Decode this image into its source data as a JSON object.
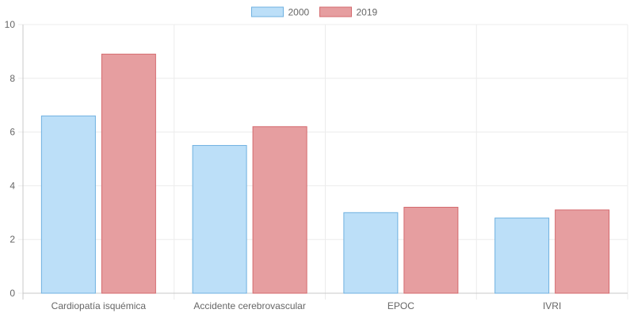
{
  "chart_data": {
    "type": "bar",
    "title": "",
    "xlabel": "",
    "ylabel": "",
    "categories": [
      "Cardiopatía isquémica",
      "Accidente cerebrovascular",
      "EPOC",
      "IVRI"
    ],
    "series": [
      {
        "name": "2000",
        "values": [
          6.6,
          5.5,
          3.0,
          2.8
        ],
        "fill": "#bcdff8",
        "stroke": "#6fb1e0"
      },
      {
        "name": "2019",
        "values": [
          8.9,
          6.2,
          3.2,
          3.1
        ],
        "fill": "#e69ea0",
        "stroke": "#d46a6e"
      }
    ],
    "ylim": [
      0,
      10
    ],
    "yticks": [
      "0",
      "2",
      "4",
      "6",
      "8",
      "10"
    ],
    "grid": true,
    "legend": "top-center"
  }
}
